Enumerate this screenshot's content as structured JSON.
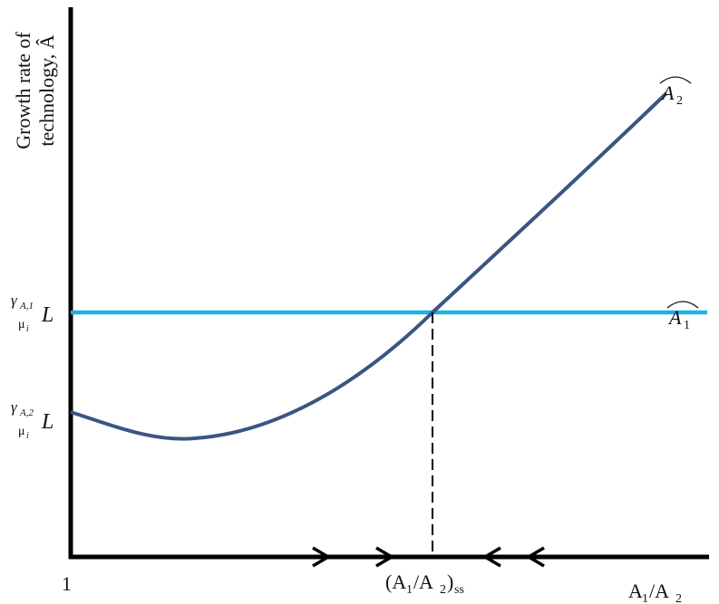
{
  "y_axis_label": [
    "Growth rate of",
    "technology, Â"
  ],
  "curves": [
    {
      "name": [
        "A",
        "2"
      ]
    },
    {
      "name": [
        "A",
        "1"
      ]
    }
  ],
  "y_ticks": [
    {
      "numerator": [
        "γ",
        "A,1"
      ],
      "denominator": [
        "μ",
        "i"
      ],
      "factor": "L"
    },
    {
      "numerator": [
        "γ",
        "A,2"
      ],
      "denominator": [
        "μ",
        "i"
      ],
      "factor": "L"
    }
  ],
  "x_ticks": {
    "origin": "1",
    "steady_state": [
      "(A",
      "1",
      "/A",
      "2",
      ")",
      "ss"
    ]
  },
  "x_axis_label": [
    "A",
    "1",
    "/A",
    "2"
  ]
}
